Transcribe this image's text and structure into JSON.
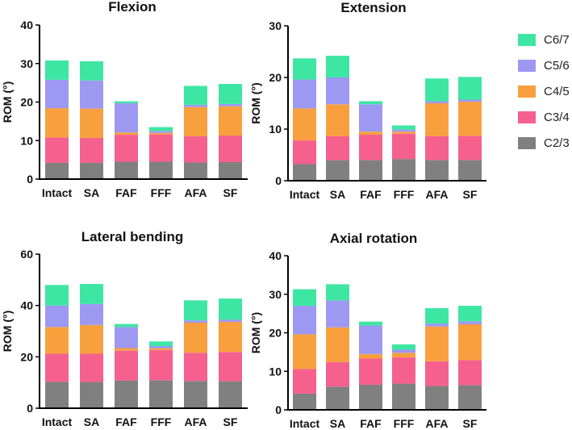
{
  "colors": {
    "C2/3": "#808080",
    "C3/4": "#f5608f",
    "C4/5": "#f8a03e",
    "C5/6": "#9d98f2",
    "C6/7": "#3ee6a3"
  },
  "legend": {
    "items": [
      {
        "label": "C6/7",
        "key": "C6/7"
      },
      {
        "label": "C5/6",
        "key": "C5/6"
      },
      {
        "label": "C4/5",
        "key": "C4/5"
      },
      {
        "label": "C3/4",
        "key": "C3/4"
      },
      {
        "label": "C2/3",
        "key": "C2/3"
      }
    ]
  },
  "chart_data": [
    {
      "type": "bar",
      "stacked": true,
      "title": "Flexion",
      "ylabel": "ROM (°)",
      "xlabel": "",
      "categories": [
        "Intact",
        "SA",
        "FAF",
        "FFF",
        "AFA",
        "SF"
      ],
      "ylim": [
        0,
        40
      ],
      "yticks": [
        0,
        10,
        20,
        30,
        40
      ],
      "series": [
        {
          "name": "C2/3",
          "values": [
            4.2,
            4.2,
            4.5,
            4.5,
            4.3,
            4.4
          ]
        },
        {
          "name": "C3/4",
          "values": [
            6.6,
            6.5,
            7.0,
            7.1,
            6.8,
            6.9
          ]
        },
        {
          "name": "C4/5",
          "values": [
            7.6,
            7.6,
            0.6,
            0.4,
            7.6,
            7.6
          ]
        },
        {
          "name": "C5/6",
          "values": [
            7.4,
            7.3,
            7.6,
            0.5,
            0.6,
            0.6
          ]
        },
        {
          "name": "C6/7",
          "values": [
            5.0,
            5.0,
            0.5,
            1.0,
            4.9,
            5.2
          ]
        }
      ]
    },
    {
      "type": "bar",
      "stacked": true,
      "title": "Extension",
      "ylabel": "ROM (°)",
      "xlabel": "",
      "categories": [
        "Intact",
        "SA",
        "FAF",
        "FFF",
        "AFA",
        "SF"
      ],
      "ylim": [
        0,
        30
      ],
      "yticks": [
        0,
        10,
        20,
        30
      ],
      "series": [
        {
          "name": "C2/3",
          "values": [
            3.2,
            4.0,
            4.0,
            4.2,
            4.0,
            4.0
          ]
        },
        {
          "name": "C3/4",
          "values": [
            4.6,
            4.6,
            4.9,
            4.9,
            4.6,
            4.7
          ]
        },
        {
          "name": "C4/5",
          "values": [
            6.2,
            6.2,
            0.6,
            0.4,
            6.4,
            6.6
          ]
        },
        {
          "name": "C5/6",
          "values": [
            5.6,
            5.2,
            5.3,
            0.4,
            0.4,
            0.4
          ]
        },
        {
          "name": "C6/7",
          "values": [
            4.1,
            4.2,
            0.6,
            0.8,
            4.4,
            4.4
          ]
        }
      ]
    },
    {
      "type": "bar",
      "stacked": true,
      "title": "Lateral bending",
      "ylabel": "ROM (°)",
      "xlabel": "",
      "categories": [
        "Intact",
        "SA",
        "FAF",
        "FFF",
        "AFA",
        "SF"
      ],
      "ylim": [
        0,
        60
      ],
      "yticks": [
        0,
        20,
        40,
        60
      ],
      "series": [
        {
          "name": "C2/3",
          "values": [
            10.3,
            10.2,
            10.8,
            10.9,
            10.6,
            10.5
          ]
        },
        {
          "name": "C3/4",
          "values": [
            10.9,
            11.0,
            11.6,
            11.7,
            11.0,
            11.4
          ]
        },
        {
          "name": "C4/5",
          "values": [
            10.4,
            11.2,
            1.0,
            0.7,
            11.7,
            11.7
          ]
        },
        {
          "name": "C5/6",
          "values": [
            8.4,
            8.2,
            8.2,
            0.9,
            0.9,
            0.9
          ]
        },
        {
          "name": "C6/7",
          "values": [
            8.0,
            7.8,
            1.2,
            1.8,
            7.8,
            8.2
          ]
        }
      ]
    },
    {
      "type": "bar",
      "stacked": true,
      "title": "Axial rotation",
      "ylabel": "ROM (°)",
      "xlabel": "",
      "categories": [
        "Intact",
        "SA",
        "FAF",
        "FFF",
        "AFA",
        "SF"
      ],
      "ylim": [
        0,
        40
      ],
      "yticks": [
        0,
        10,
        20,
        30,
        40
      ],
      "series": [
        {
          "name": "C2/3",
          "values": [
            4.2,
            6.0,
            6.5,
            6.8,
            6.2,
            6.4
          ]
        },
        {
          "name": "C3/4",
          "values": [
            6.4,
            6.4,
            6.8,
            6.8,
            6.4,
            6.5
          ]
        },
        {
          "name": "C4/5",
          "values": [
            9.0,
            9.0,
            1.2,
            1.2,
            9.0,
            9.3
          ]
        },
        {
          "name": "C5/6",
          "values": [
            7.4,
            7.0,
            7.4,
            0.8,
            0.8,
            0.8
          ]
        },
        {
          "name": "C6/7",
          "values": [
            4.3,
            4.2,
            1.0,
            1.4,
            4.0,
            4.0
          ]
        }
      ]
    }
  ]
}
